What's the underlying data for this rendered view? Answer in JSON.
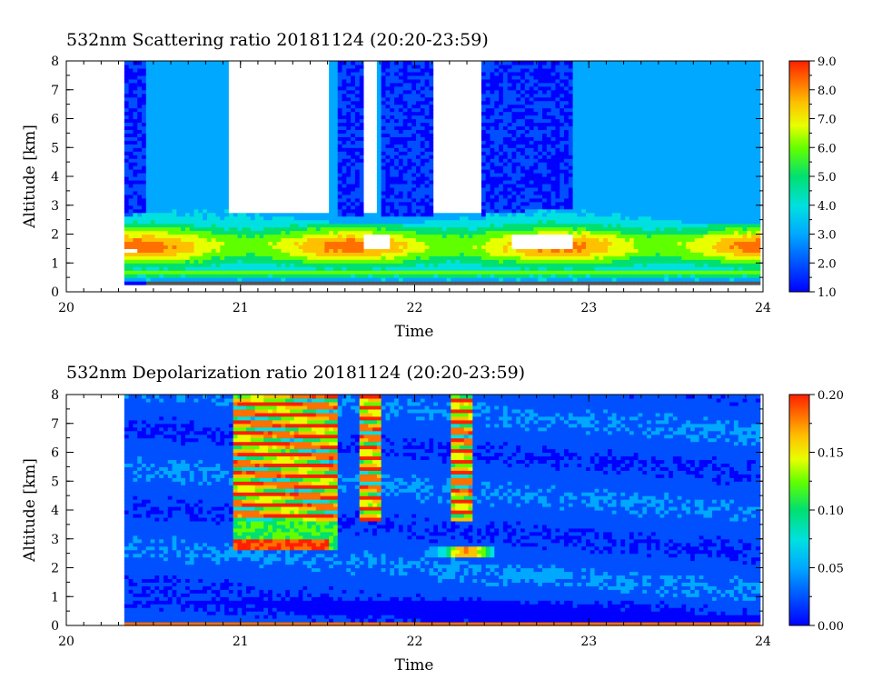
{
  "chart_data": [
    {
      "type": "heatmap",
      "title": "532nm Scattering ratio  20181124 (20:20-23:59)",
      "xlabel": "Time",
      "ylabel": "Altitude [km]",
      "xlim": [
        20,
        24
      ],
      "ylim": [
        0,
        8
      ],
      "x_ticks": [
        "20",
        "21",
        "22",
        "23",
        "24"
      ],
      "y_ticks": [
        "0",
        "1",
        "2",
        "3",
        "4",
        "5",
        "6",
        "7",
        "8"
      ],
      "colorbar": {
        "min": 1.0,
        "max": 9.0,
        "ticks": [
          "1.0",
          "2.0",
          "3.0",
          "4.0",
          "5.0",
          "6.0",
          "7.0",
          "8.0",
          "9.0"
        ]
      },
      "data_start": 20.333,
      "data_end": 23.983,
      "features": {
        "background_level": 2.8,
        "dense_cloud_columns": [
          [
            20.33,
            20.45
          ],
          [
            21.55,
            21.7
          ],
          [
            21.8,
            22.1
          ],
          [
            22.38,
            22.92
          ]
        ],
        "saturated_gaps": [
          [
            20.93,
            21.5
          ],
          [
            21.72,
            21.78
          ],
          [
            22.12,
            22.38
          ]
        ],
        "low_cloud_top_km": 2.6,
        "low_cloud_peak_km": 1.6,
        "low_cloud_peak_value": 7.8,
        "surface_layer_km": 0.3
      },
      "colors": [
        "#0000ff",
        "#0050ff",
        "#00a8ff",
        "#00e0e0",
        "#00e070",
        "#60ff00",
        "#e8ff00",
        "#ffc000",
        "#ff7000",
        "#ff2000"
      ]
    },
    {
      "type": "heatmap",
      "title": "532nm Depolarization ratio  20181124 (20:20-23:59)",
      "xlabel": "Time",
      "ylabel": "Altitude [km]",
      "xlim": [
        20,
        24
      ],
      "ylim": [
        0,
        8
      ],
      "x_ticks": [
        "20",
        "21",
        "22",
        "23",
        "24"
      ],
      "y_ticks": [
        "0",
        "1",
        "2",
        "3",
        "4",
        "5",
        "6",
        "7",
        "8"
      ],
      "colorbar": {
        "min": 0.0,
        "max": 0.2,
        "ticks": [
          "0.00",
          "0.05",
          "0.10",
          "0.15",
          "0.20"
        ]
      },
      "data_start": 20.333,
      "data_end": 23.983,
      "features": {
        "background_level": 0.03,
        "high_depol_columns": [
          [
            20.97,
            21.55
          ],
          [
            21.68,
            21.82
          ],
          [
            22.2,
            22.33
          ]
        ],
        "high_depol_value": 0.19,
        "mid_layer_km": [
          2.6,
          3.6
        ],
        "mid_layer_value": 0.1,
        "surface_band_value": 0.17
      },
      "colors": [
        "#0000ff",
        "#0050ff",
        "#00a8ff",
        "#00e0e0",
        "#00e070",
        "#60ff00",
        "#e8ff00",
        "#ffc000",
        "#ff7000",
        "#ff2000"
      ]
    }
  ]
}
